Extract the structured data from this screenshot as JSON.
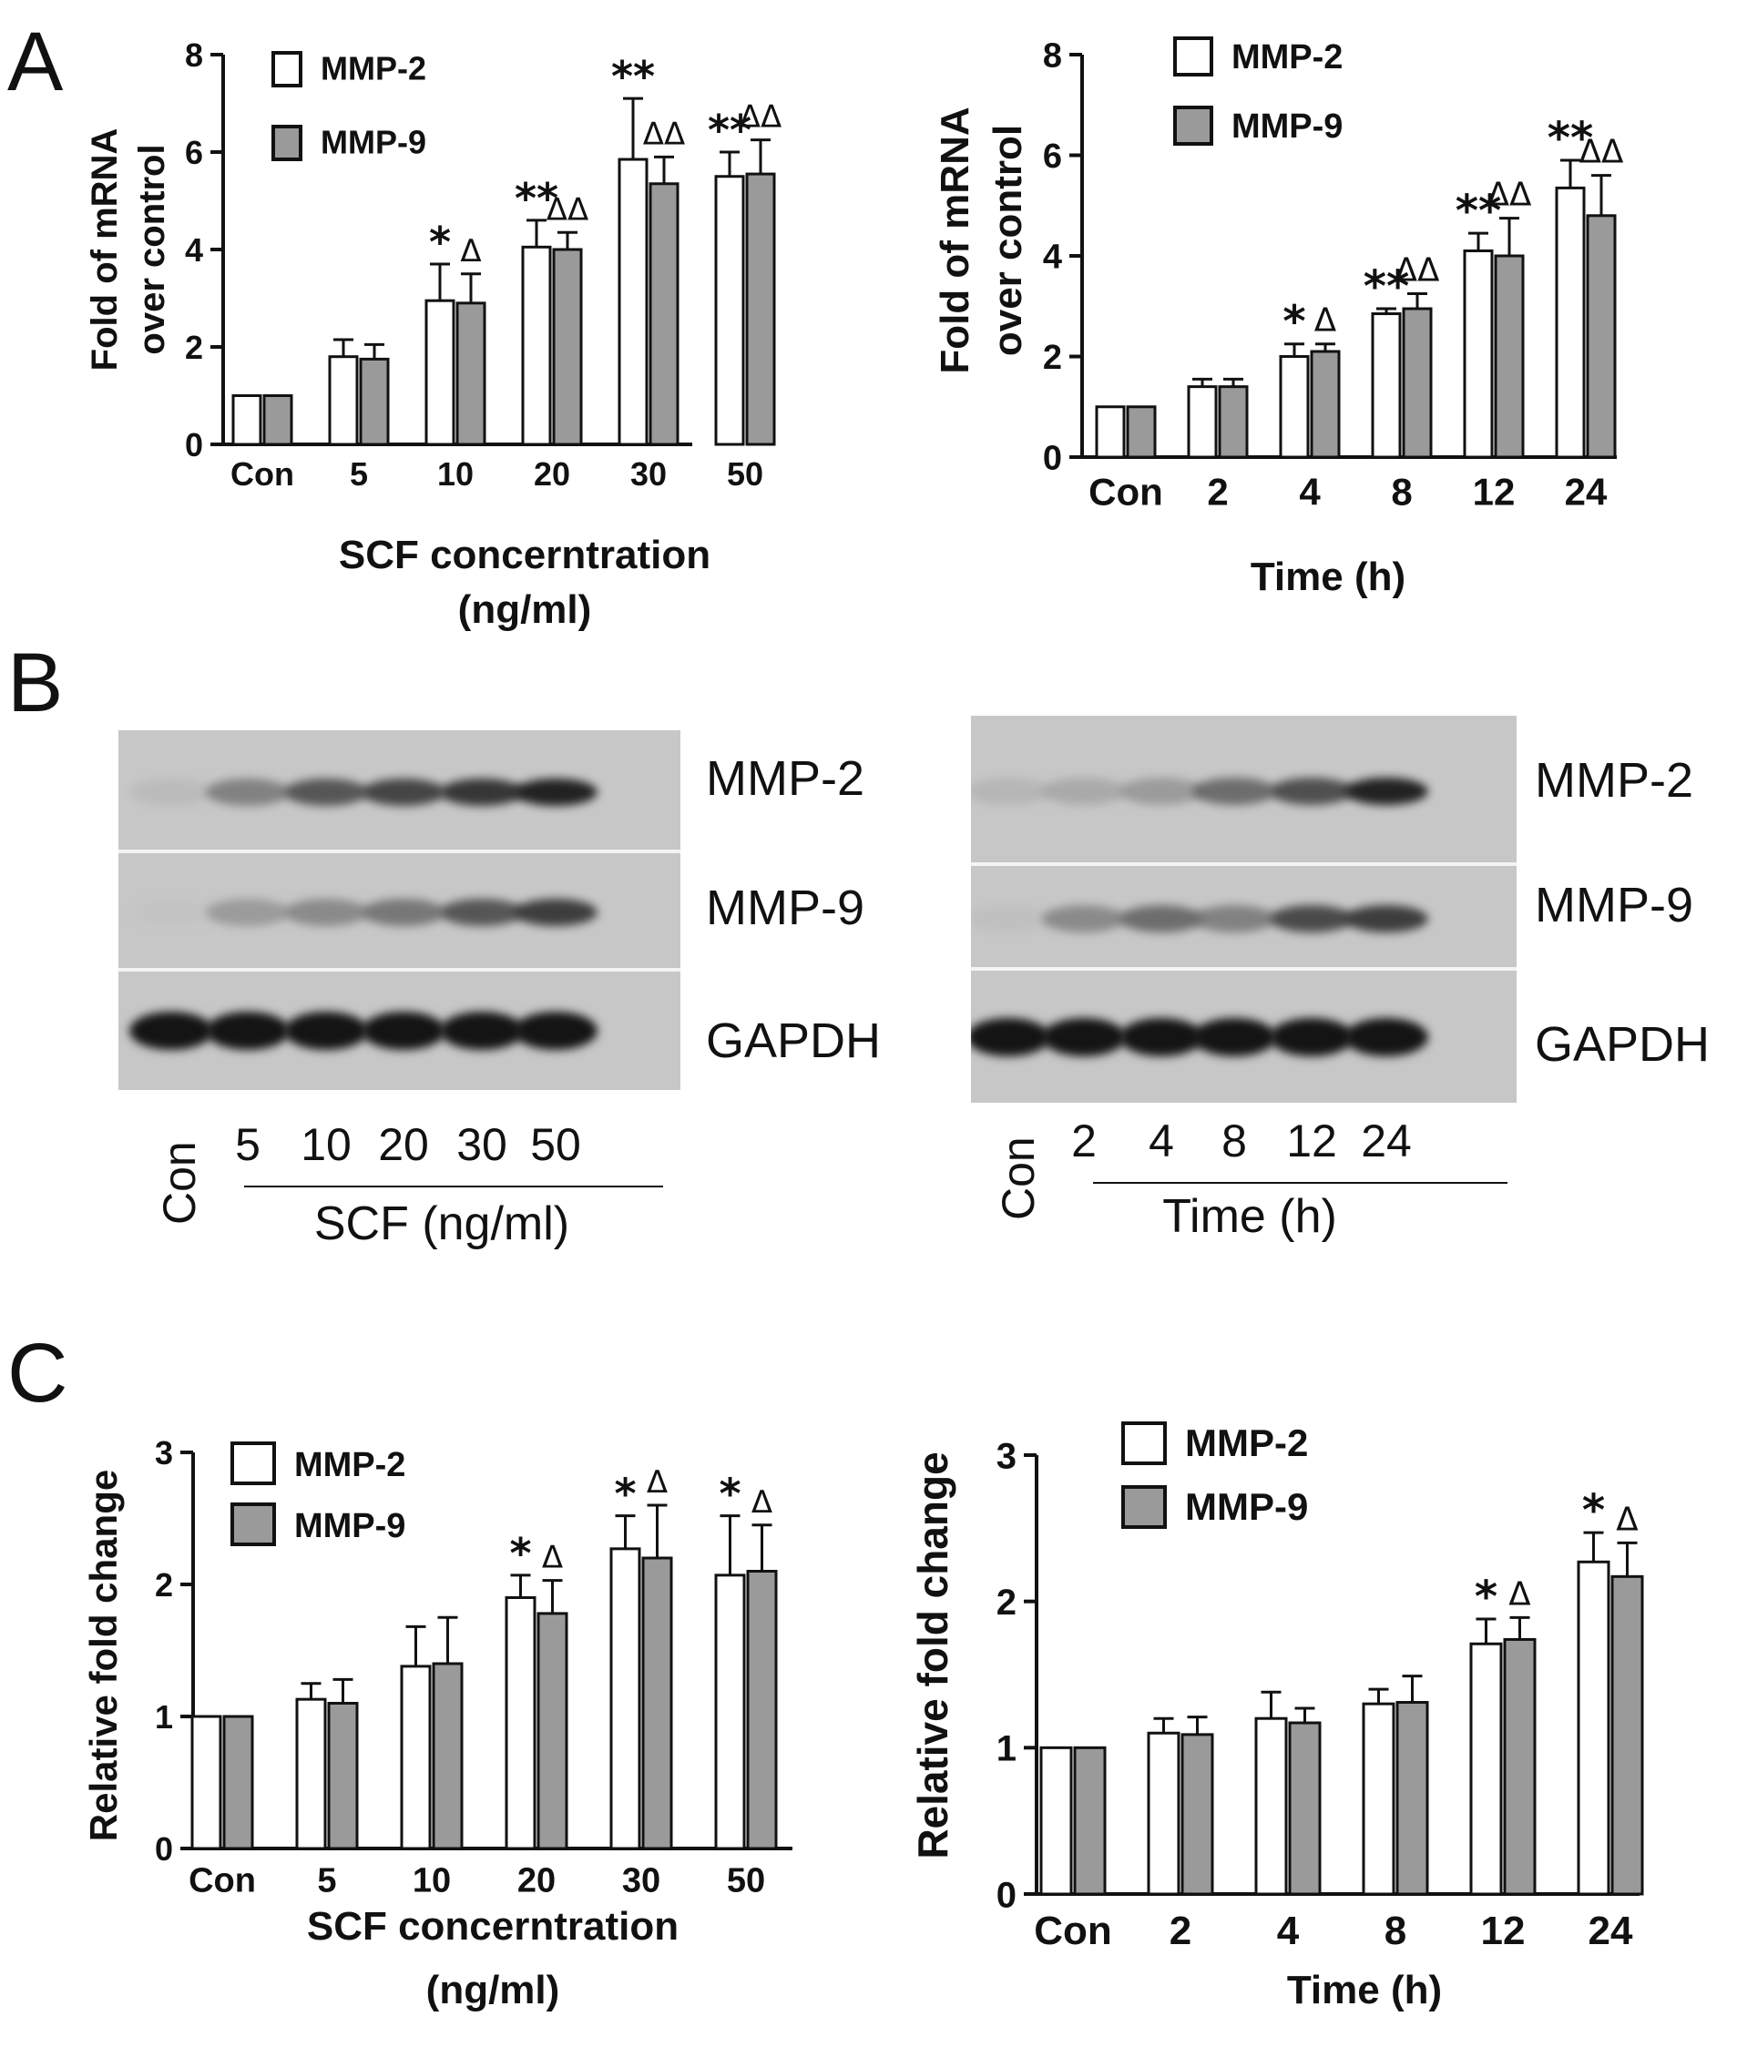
{
  "panels": {
    "a": "A",
    "b": "B",
    "c": "C"
  },
  "colors": {
    "mmp2_fill": "#ffffff",
    "mmp9_fill": "#9a9a9a",
    "axis": "#111111"
  },
  "chart_data": [
    {
      "id": "A-left",
      "type": "bar",
      "categories": [
        "Con",
        "5",
        "10",
        "20",
        "30",
        "50"
      ],
      "series": [
        {
          "name": "MMP-2",
          "values": [
            1.0,
            1.8,
            2.95,
            4.05,
            5.85,
            5.5
          ],
          "errors": [
            0,
            0.35,
            0.75,
            0.55,
            1.25,
            0.5
          ]
        },
        {
          "name": "MMP-9",
          "values": [
            1.0,
            1.75,
            2.9,
            4.0,
            5.35,
            5.55
          ],
          "errors": [
            0,
            0.3,
            0.6,
            0.35,
            0.55,
            0.7
          ]
        }
      ],
      "annotations": [
        {
          "series": "MMP-2",
          "index": 2,
          "text": "*"
        },
        {
          "series": "MMP-9",
          "index": 2,
          "text": "Δ"
        },
        {
          "series": "MMP-2",
          "index": 3,
          "text": "**"
        },
        {
          "series": "MMP-9",
          "index": 3,
          "text": "ΔΔ"
        },
        {
          "series": "MMP-2",
          "index": 4,
          "text": "**"
        },
        {
          "series": "MMP-9",
          "index": 4,
          "text": "ΔΔ"
        },
        {
          "series": "MMP-2",
          "index": 5,
          "text": "**"
        },
        {
          "series": "MMP-9",
          "index": 5,
          "text": "ΔΔ"
        }
      ],
      "ylabel": [
        "Fold of mRNA",
        "over control"
      ],
      "xlabel": [
        "SCF concerntration",
        "(ng/ml)"
      ],
      "ylim": [
        0,
        8
      ],
      "yticks": [
        "0",
        "2",
        "4",
        "6",
        "8"
      ],
      "legend": "top-left"
    },
    {
      "id": "A-right",
      "type": "bar",
      "categories": [
        "Con",
        "2",
        "4",
        "8",
        "12",
        "24"
      ],
      "series": [
        {
          "name": "MMP-2",
          "values": [
            1.0,
            1.4,
            2.0,
            2.85,
            4.1,
            5.35
          ],
          "errors": [
            0,
            0.15,
            0.25,
            0.1,
            0.35,
            0.55
          ]
        },
        {
          "name": "MMP-9",
          "values": [
            1.0,
            1.4,
            2.1,
            2.95,
            4.0,
            4.8
          ],
          "errors": [
            0,
            0.15,
            0.15,
            0.3,
            0.75,
            0.8
          ]
        }
      ],
      "annotations": [
        {
          "series": "MMP-2",
          "index": 2,
          "text": "*"
        },
        {
          "series": "MMP-9",
          "index": 2,
          "text": "Δ"
        },
        {
          "series": "MMP-2",
          "index": 3,
          "text": "**"
        },
        {
          "series": "MMP-9",
          "index": 3,
          "text": "ΔΔ"
        },
        {
          "series": "MMP-2",
          "index": 4,
          "text": "**"
        },
        {
          "series": "MMP-9",
          "index": 4,
          "text": "ΔΔ"
        },
        {
          "series": "MMP-2",
          "index": 5,
          "text": "**"
        },
        {
          "series": "MMP-9",
          "index": 5,
          "text": "ΔΔ"
        }
      ],
      "ylabel": [
        "Fold of mRNA",
        "over control"
      ],
      "xlabel": [
        "Time (h)"
      ],
      "ylim": [
        0,
        8
      ],
      "yticks": [
        "0",
        "2",
        "4",
        "6",
        "8"
      ],
      "legend": "top-left"
    },
    {
      "id": "C-left",
      "type": "bar",
      "categories": [
        "Con",
        "5",
        "10",
        "20",
        "30",
        "50"
      ],
      "series": [
        {
          "name": "MMP-2",
          "values": [
            1.0,
            1.13,
            1.38,
            1.9,
            2.27,
            2.07
          ],
          "errors": [
            0,
            0.12,
            0.3,
            0.17,
            0.25,
            0.45
          ]
        },
        {
          "name": "MMP-9",
          "values": [
            1.0,
            1.1,
            1.4,
            1.78,
            2.2,
            2.1
          ],
          "errors": [
            0,
            0.18,
            0.35,
            0.25,
            0.4,
            0.35
          ]
        }
      ],
      "annotations": [
        {
          "series": "MMP-2",
          "index": 3,
          "text": "*"
        },
        {
          "series": "MMP-9",
          "index": 3,
          "text": "Δ"
        },
        {
          "series": "MMP-2",
          "index": 4,
          "text": "*"
        },
        {
          "series": "MMP-9",
          "index": 4,
          "text": "Δ"
        },
        {
          "series": "MMP-2",
          "index": 5,
          "text": "*"
        },
        {
          "series": "MMP-9",
          "index": 5,
          "text": "Δ"
        }
      ],
      "ylabel": [
        "Relative fold change"
      ],
      "xlabel": [
        "SCF concerntration",
        "(ng/ml)"
      ],
      "ylim": [
        0,
        3
      ],
      "yticks": [
        "0",
        "1",
        "2",
        "3"
      ],
      "legend": "top-left"
    },
    {
      "id": "C-right",
      "type": "bar",
      "categories": [
        "Con",
        "2",
        "4",
        "8",
        "12",
        "24"
      ],
      "series": [
        {
          "name": "MMP-2",
          "values": [
            1.0,
            1.1,
            1.2,
            1.3,
            1.71,
            2.27
          ],
          "errors": [
            0,
            0.1,
            0.18,
            0.1,
            0.17,
            0.2
          ]
        },
        {
          "name": "MMP-9",
          "values": [
            1.0,
            1.09,
            1.17,
            1.31,
            1.74,
            2.17
          ],
          "errors": [
            0,
            0.12,
            0.1,
            0.18,
            0.15,
            0.23
          ]
        }
      ],
      "annotations": [
        {
          "series": "MMP-2",
          "index": 4,
          "text": "*"
        },
        {
          "series": "MMP-9",
          "index": 4,
          "text": "Δ"
        },
        {
          "series": "MMP-2",
          "index": 5,
          "text": "*"
        },
        {
          "series": "MMP-9",
          "index": 5,
          "text": "Δ"
        }
      ],
      "ylabel": [
        "Relative fold change"
      ],
      "xlabel": [
        "Time (h)"
      ],
      "ylim": [
        0,
        3
      ],
      "yticks": [
        "0",
        "1",
        "2",
        "3"
      ],
      "legend": "top-left"
    }
  ],
  "western_blots": [
    {
      "id": "B-left",
      "rows": [
        {
          "label": "MMP-2",
          "intensities": [
            0.15,
            0.55,
            0.75,
            0.82,
            0.88,
            0.95
          ]
        },
        {
          "label": "MMP-9",
          "intensities": [
            0.05,
            0.4,
            0.5,
            0.6,
            0.75,
            0.85
          ]
        },
        {
          "label": "GAPDH",
          "intensities": [
            1,
            1,
            1,
            1,
            1,
            1
          ]
        }
      ],
      "con_label": "Con",
      "lane_labels": [
        "5",
        "10",
        "20",
        "30",
        "50"
      ],
      "xlabel": "SCF (ng/ml)"
    },
    {
      "id": "B-right",
      "rows": [
        {
          "label": "MMP-2",
          "intensities": [
            0.2,
            0.3,
            0.4,
            0.65,
            0.78,
            0.95
          ]
        },
        {
          "label": "MMP-9",
          "intensities": [
            0.1,
            0.5,
            0.65,
            0.55,
            0.8,
            0.85
          ]
        },
        {
          "label": "GAPDH",
          "intensities": [
            1,
            1,
            1,
            1,
            1,
            1
          ]
        }
      ],
      "con_label": "Con",
      "lane_labels": [
        "2",
        "4",
        "8",
        "12",
        "24"
      ],
      "xlabel": "Time (h)"
    }
  ]
}
